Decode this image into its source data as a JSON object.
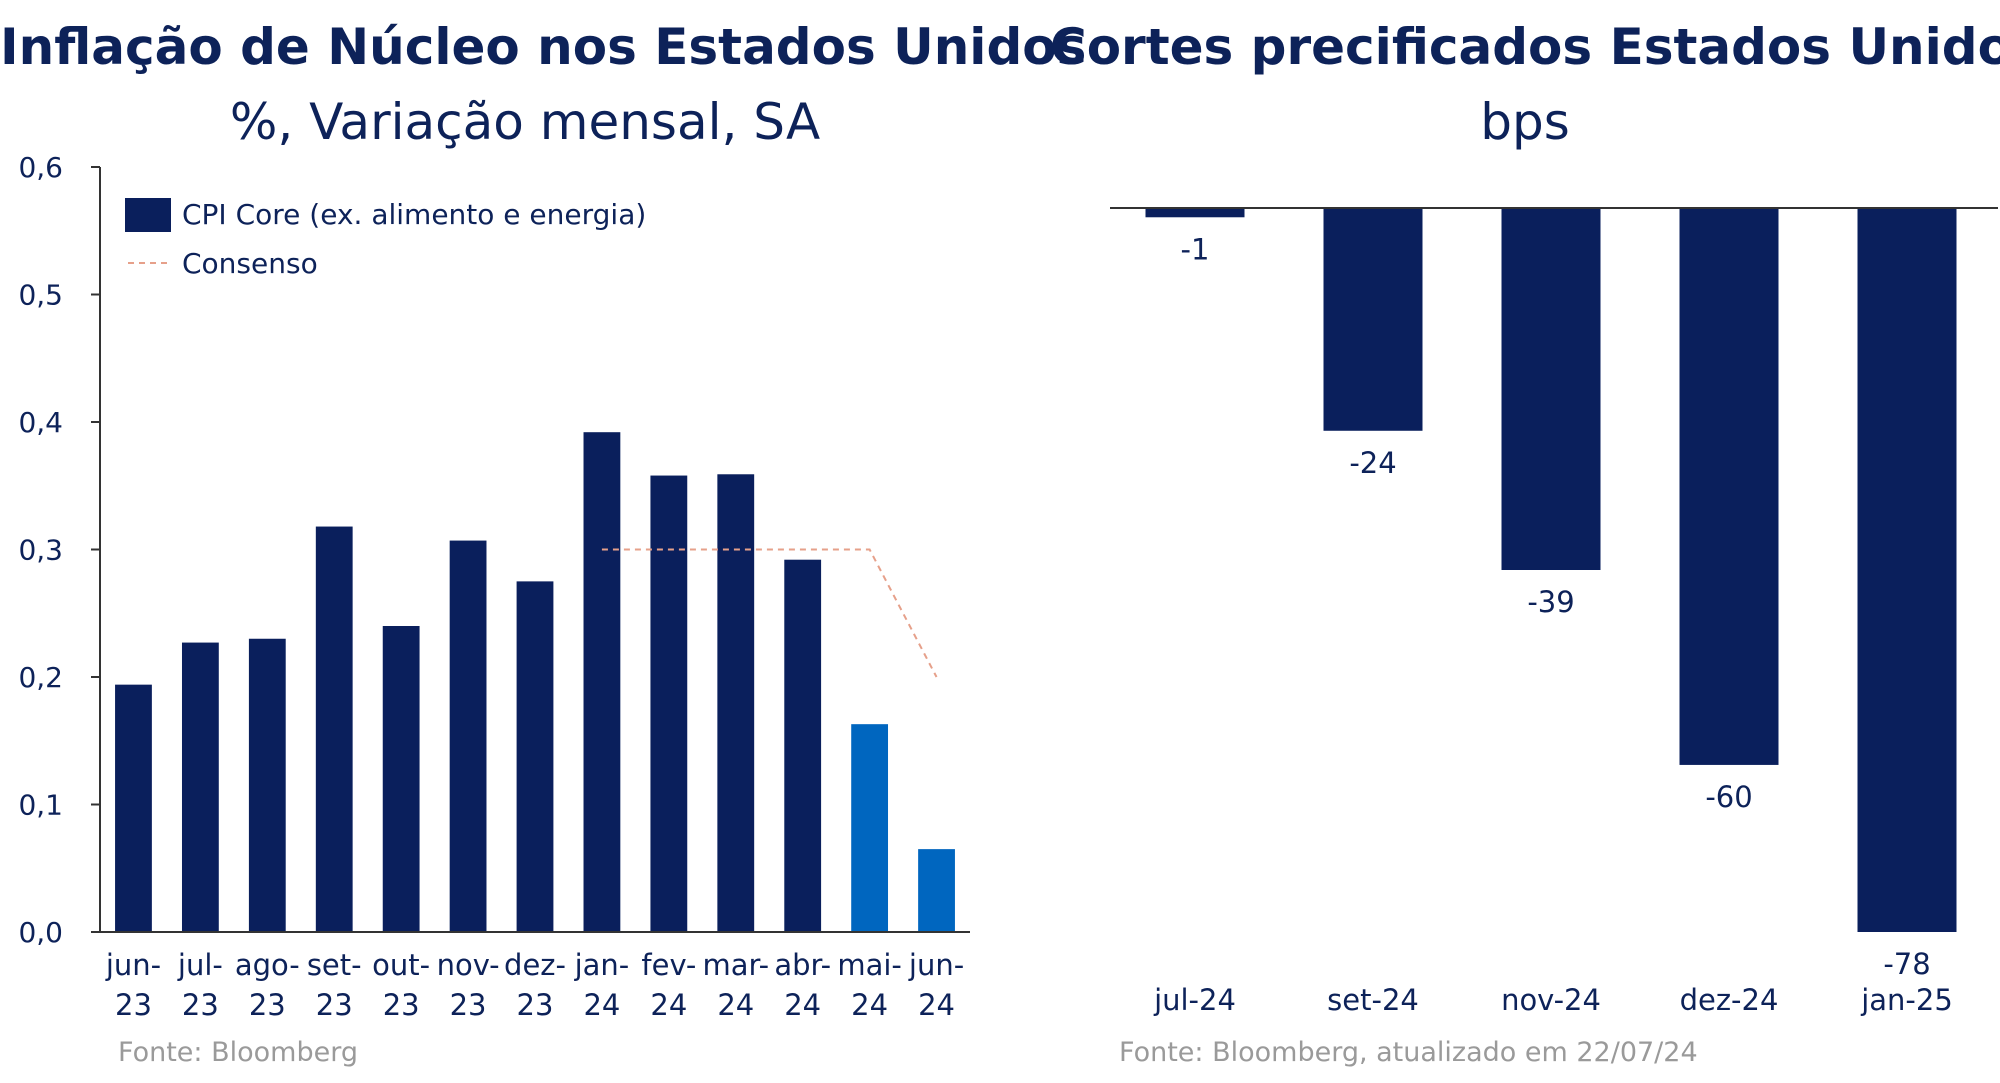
{
  "left": {
    "title": "Inflação de Núcleo nos Estados Unidos",
    "subtitle": "%, Variação mensal, SA",
    "source": "Fonte: Bloomberg"
  },
  "right": {
    "title": "Cortes precificados Estados Unidos",
    "subtitle": "bps",
    "source": "Fonte: Bloomberg, atualizado em 22/07/24"
  },
  "colors": {
    "navy": "#0a1f5c",
    "highlight_blue": "#0066bf",
    "consensus": "#e6a08a",
    "axis": "#333333"
  },
  "chart_data": [
    {
      "type": "bar",
      "title": "Inflação de Núcleo nos Estados Unidos",
      "subtitle": "%, Variação mensal, SA",
      "categories": [
        [
          "jun-",
          "23"
        ],
        [
          "jul-",
          "23"
        ],
        [
          "ago-",
          "23"
        ],
        [
          "set-",
          "23"
        ],
        [
          "out-",
          "23"
        ],
        [
          "nov-",
          "23"
        ],
        [
          "dez-",
          "23"
        ],
        [
          "jan-",
          "24"
        ],
        [
          "fev-",
          "24"
        ],
        [
          "mar-",
          "24"
        ],
        [
          "abr-",
          "24"
        ],
        [
          "mai-",
          "24"
        ],
        [
          "jun-",
          "24"
        ]
      ],
      "series": [
        {
          "name": "CPI Core (ex. alimento e energia)",
          "values": [
            0.194,
            0.227,
            0.23,
            0.318,
            0.24,
            0.307,
            0.275,
            0.392,
            0.358,
            0.359,
            0.292,
            0.163,
            0.065
          ],
          "highlight_from_index": 11
        }
      ],
      "consensus": {
        "name": "Consenso",
        "start_index": 7,
        "values": [
          0.3,
          0.3,
          0.3,
          0.3,
          0.3,
          0.2
        ]
      },
      "ylim": [
        0.0,
        0.6
      ],
      "yticks": [
        "0,0",
        "0,1",
        "0,2",
        "0,3",
        "0,4",
        "0,5",
        "0,6"
      ],
      "legend_position": "top-left"
    },
    {
      "type": "bar",
      "title": "Cortes precificados Estados Unidos",
      "subtitle": "bps",
      "categories": [
        "jul-24",
        "set-24",
        "nov-24",
        "dez-24",
        "jan-25"
      ],
      "values": [
        -1,
        -24,
        -39,
        -60,
        -78
      ],
      "labels": [
        "-1",
        "-24",
        "-39",
        "-60",
        "-78"
      ],
      "ylim": [
        -78,
        0
      ],
      "data_labels": true
    }
  ]
}
